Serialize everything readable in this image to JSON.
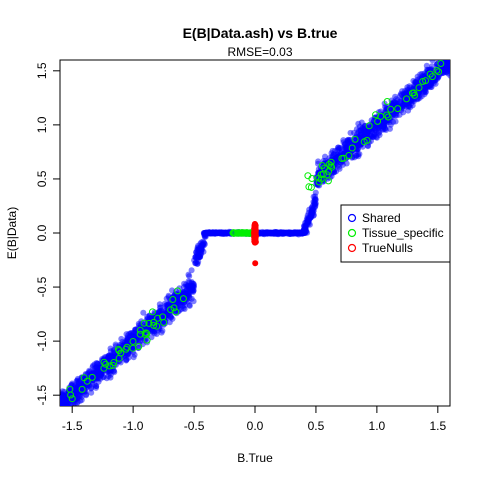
{
  "chart_data": {
    "type": "scatter",
    "title": "E(B|Data.ash) vs B.true",
    "subtitle": "RMSE=0.03",
    "xlabel": "B.True",
    "ylabel": "E(B|Data)",
    "xlim": [
      -1.6,
      1.6
    ],
    "ylim": [
      -1.6,
      1.6
    ],
    "x_ticks": [
      -1.5,
      -1.0,
      -0.5,
      0.0,
      0.5,
      1.0,
      1.5
    ],
    "y_ticks": [
      -1.5,
      -1.0,
      -0.5,
      0.0,
      0.5,
      1.0,
      1.5
    ],
    "x_tick_labels": [
      "-1.5",
      "-1.0",
      "-0.5",
      "0.0",
      "0.5",
      "1.0",
      "1.5"
    ],
    "y_tick_labels": [
      "-1.5",
      "-1.0",
      "-0.5",
      "0.0",
      "0.5",
      "1.0",
      "1.5"
    ],
    "grid": false,
    "legend_position": "right",
    "series": [
      {
        "name": "Shared",
        "color": "#0000ff",
        "marker": "filled-circle-translucent",
        "note_values": "dense cloud: |x|>=0.4 points lie near y=x (spread ~0.12); |x|<0.4 points shrunk to y=0",
        "points": [
          [
            -1.5,
            -1.5
          ],
          [
            -1.4,
            -1.38
          ],
          [
            -1.3,
            -1.28
          ],
          [
            -1.2,
            -1.2
          ],
          [
            -1.1,
            -1.1
          ],
          [
            -1.0,
            -0.98
          ],
          [
            -0.9,
            -0.9
          ],
          [
            -0.8,
            -0.8
          ],
          [
            -0.7,
            -0.7
          ],
          [
            -0.6,
            -0.6
          ],
          [
            -0.5,
            -0.5
          ],
          [
            -0.45,
            -0.3
          ],
          [
            -0.4,
            0.0
          ],
          [
            -0.2,
            0.0
          ],
          [
            0.0,
            0.0
          ],
          [
            0.2,
            0.0
          ],
          [
            0.4,
            0.0
          ],
          [
            0.45,
            0.3
          ],
          [
            0.5,
            0.5
          ],
          [
            0.6,
            0.6
          ],
          [
            0.7,
            0.7
          ],
          [
            0.8,
            0.8
          ],
          [
            0.9,
            0.9
          ],
          [
            1.0,
            1.0
          ],
          [
            1.1,
            1.1
          ],
          [
            1.2,
            1.2
          ],
          [
            1.3,
            1.3
          ],
          [
            1.4,
            1.4
          ],
          [
            1.5,
            1.5
          ]
        ]
      },
      {
        "name": "Tissue_specific",
        "color": "#00ee00",
        "marker": "open-circle",
        "note_values": "scattered along the diagonal and along y=0 for x in [-0.15, 0]",
        "points": [
          [
            -1.3,
            -1.2
          ],
          [
            -1.25,
            -1.35
          ],
          [
            -0.95,
            -0.95
          ],
          [
            -0.75,
            -0.72
          ],
          [
            -0.5,
            -0.4
          ],
          [
            -0.3,
            0.0
          ],
          [
            -0.15,
            0.0
          ],
          [
            -0.1,
            0.0
          ],
          [
            -0.05,
            0.0
          ],
          [
            0.3,
            0.0
          ],
          [
            0.5,
            0.55
          ],
          [
            0.7,
            0.7
          ],
          [
            0.8,
            0.85
          ],
          [
            1.0,
            0.95
          ],
          [
            1.2,
            1.3
          ],
          [
            1.4,
            1.55
          ]
        ]
      },
      {
        "name": "TrueNulls",
        "color": "#ff0000",
        "marker": "filled-circle",
        "note_values": "all at x=0, y ranging about -0.48 to 0.42",
        "y_range_at_zero": [
          -0.48,
          0.42
        ]
      }
    ]
  }
}
